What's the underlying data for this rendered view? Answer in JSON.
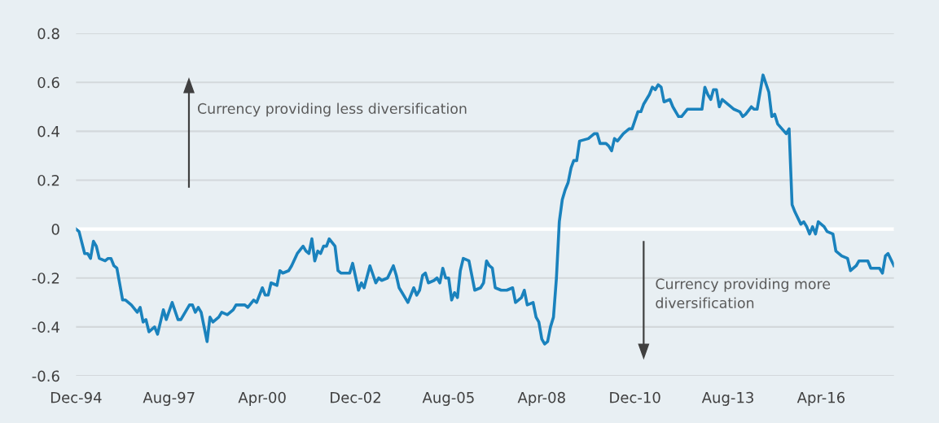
{
  "chart_data": {
    "type": "line",
    "x": [
      "1994-12",
      "1995-01",
      "1995-03",
      "1995-04",
      "1995-05",
      "1995-06",
      "1995-07",
      "1995-08",
      "1995-10",
      "1995-11",
      "1995-12",
      "1996-01",
      "1996-02",
      "1996-04",
      "1996-05",
      "1996-07",
      "1996-09",
      "1996-10",
      "1996-11",
      "1996-12",
      "1997-01",
      "1997-03",
      "1997-04",
      "1997-06",
      "1997-07",
      "1997-09",
      "1997-11",
      "1997-12",
      "1998-03",
      "1998-04",
      "1998-05",
      "1998-06",
      "1998-07",
      "1998-09",
      "1998-10",
      "1998-11",
      "1999-01",
      "1999-02",
      "1999-04",
      "1999-06",
      "1999-07",
      "1999-10",
      "1999-11",
      "2000-01",
      "2000-02",
      "2000-04",
      "2000-05",
      "2000-06",
      "2000-07",
      "2000-09",
      "2000-10",
      "2000-11",
      "2001-01",
      "2001-02",
      "2001-04",
      "2001-06",
      "2001-07",
      "2001-08",
      "2001-09",
      "2001-10",
      "2001-11",
      "2001-12",
      "2002-01",
      "2002-02",
      "2002-03",
      "2002-05",
      "2002-06",
      "2002-07",
      "2002-08",
      "2002-10",
      "2002-11",
      "2003-01",
      "2003-02",
      "2003-03",
      "2003-05",
      "2003-07",
      "2003-08",
      "2003-09",
      "2003-11",
      "2004-01",
      "2004-02",
      "2004-03",
      "2004-04",
      "2004-06",
      "2004-08",
      "2004-09",
      "2004-10",
      "2004-11",
      "2004-12",
      "2005-01",
      "2005-03",
      "2005-04",
      "2005-05",
      "2005-06",
      "2005-07",
      "2005-08",
      "2005-09",
      "2005-10",
      "2005-11",
      "2005-12",
      "2006-01",
      "2006-03",
      "2006-05",
      "2006-07",
      "2006-08",
      "2006-09",
      "2006-10",
      "2006-11",
      "2006-12",
      "2007-02",
      "2007-04",
      "2007-06",
      "2007-07",
      "2007-09",
      "2007-10",
      "2007-11",
      "2008-01",
      "2008-02",
      "2008-03",
      "2008-04",
      "2008-05",
      "2008-06",
      "2008-07",
      "2008-08",
      "2008-09",
      "2008-10",
      "2008-11",
      "2008-12",
      "2009-01",
      "2009-02",
      "2009-03",
      "2009-04",
      "2009-05",
      "2009-08",
      "2009-10",
      "2009-11",
      "2009-12",
      "2010-02",
      "2010-03",
      "2010-04",
      "2010-05",
      "2010-06",
      "2010-08",
      "2010-10",
      "2010-11",
      "2011-01",
      "2011-02",
      "2011-03",
      "2011-05",
      "2011-06",
      "2011-07",
      "2011-08",
      "2011-09",
      "2011-10",
      "2011-12",
      "2012-01",
      "2012-03",
      "2012-04",
      "2012-06",
      "2012-07",
      "2012-09",
      "2012-10",
      "2012-11",
      "2012-12",
      "2013-01",
      "2013-02",
      "2013-03",
      "2013-04",
      "2013-05",
      "2013-06",
      "2013-08",
      "2013-09",
      "2013-10",
      "2013-12",
      "2014-01",
      "2014-02",
      "2014-04",
      "2014-05",
      "2014-06",
      "2014-08",
      "2014-10",
      "2014-11",
      "2014-12",
      "2015-01",
      "2015-04",
      "2015-05",
      "2015-06",
      "2015-07",
      "2015-09",
      "2015-10",
      "2015-11",
      "2015-12",
      "2016-01",
      "2016-02",
      "2016-03",
      "2016-05",
      "2016-06",
      "2016-08",
      "2016-09",
      "2016-11",
      "2017-01",
      "2017-02",
      "2017-04",
      "2017-05",
      "2017-08",
      "2017-09",
      "2017-11",
      "2017-12",
      "2018-01",
      "2018-02",
      "2018-03",
      "2018-05"
    ],
    "series": [
      {
        "color": "#1a82bd",
        "values": [
          0.0,
          -0.01,
          -0.1,
          -0.1,
          -0.12,
          -0.05,
          -0.07,
          -0.12,
          -0.13,
          -0.12,
          -0.12,
          -0.15,
          -0.16,
          -0.29,
          -0.29,
          -0.31,
          -0.34,
          -0.32,
          -0.38,
          -0.37,
          -0.42,
          -0.4,
          -0.43,
          -0.33,
          -0.37,
          -0.3,
          -0.37,
          -0.37,
          -0.31,
          -0.31,
          -0.34,
          -0.32,
          -0.34,
          -0.46,
          -0.36,
          -0.38,
          -0.36,
          -0.34,
          -0.35,
          -0.33,
          -0.31,
          -0.31,
          -0.32,
          -0.29,
          -0.3,
          -0.24,
          -0.27,
          -0.27,
          -0.22,
          -0.23,
          -0.17,
          -0.18,
          -0.17,
          -0.15,
          -0.1,
          -0.07,
          -0.09,
          -0.1,
          -0.04,
          -0.13,
          -0.09,
          -0.1,
          -0.07,
          -0.07,
          -0.04,
          -0.07,
          -0.17,
          -0.18,
          -0.18,
          -0.18,
          -0.14,
          -0.25,
          -0.22,
          -0.24,
          -0.15,
          -0.22,
          -0.2,
          -0.21,
          -0.2,
          -0.15,
          -0.19,
          -0.24,
          -0.26,
          -0.3,
          -0.24,
          -0.27,
          -0.25,
          -0.19,
          -0.18,
          -0.22,
          -0.21,
          -0.2,
          -0.22,
          -0.16,
          -0.2,
          -0.2,
          -0.29,
          -0.26,
          -0.28,
          -0.17,
          -0.12,
          -0.13,
          -0.25,
          -0.24,
          -0.22,
          -0.13,
          -0.15,
          -0.16,
          -0.24,
          -0.25,
          -0.25,
          -0.24,
          -0.3,
          -0.28,
          -0.25,
          -0.31,
          -0.3,
          -0.36,
          -0.38,
          -0.45,
          -0.47,
          -0.46,
          -0.4,
          -0.36,
          -0.2,
          0.03,
          0.12,
          0.16,
          0.19,
          0.25,
          0.28,
          0.28,
          0.36,
          0.37,
          0.39,
          0.39,
          0.35,
          0.35,
          0.34,
          0.32,
          0.37,
          0.36,
          0.39,
          0.41,
          0.41,
          0.48,
          0.48,
          0.51,
          0.55,
          0.58,
          0.57,
          0.59,
          0.58,
          0.52,
          0.53,
          0.5,
          0.46,
          0.46,
          0.49,
          0.49,
          0.49,
          0.49,
          0.49,
          0.58,
          0.55,
          0.53,
          0.57,
          0.57,
          0.5,
          0.53,
          0.51,
          0.5,
          0.49,
          0.48,
          0.46,
          0.47,
          0.5,
          0.49,
          0.49,
          0.63,
          0.56,
          0.46,
          0.47,
          0.43,
          0.39,
          0.41,
          0.1,
          0.07,
          0.02,
          0.03,
          0.01,
          -0.02,
          0.01,
          -0.02,
          0.03,
          0.01,
          -0.01,
          -0.02,
          -0.09,
          -0.11,
          -0.12,
          -0.17,
          -0.15,
          -0.13,
          -0.13,
          -0.16,
          -0.16,
          -0.16,
          -0.18,
          -0.11,
          -0.1,
          -0.15
        ]
      }
    ],
    "xlim": [
      "1994-12",
      "2018-05"
    ],
    "xticks": [
      {
        "value": "1994-12",
        "label": "Dec-94"
      },
      {
        "value": "1997-08",
        "label": "Aug-97"
      },
      {
        "value": "2000-04",
        "label": "Apr-00"
      },
      {
        "value": "2002-12",
        "label": "Dec-02"
      },
      {
        "value": "2005-08",
        "label": "Aug-05"
      },
      {
        "value": "2008-04",
        "label": "Apr-08"
      },
      {
        "value": "2010-12",
        "label": "Dec-10"
      },
      {
        "value": "2013-08",
        "label": "Aug-13"
      },
      {
        "value": "2016-04",
        "label": "Apr-16"
      }
    ],
    "ylim": [
      -0.6,
      0.8
    ],
    "yticks": [
      {
        "value": 0.8,
        "label": "0.8"
      },
      {
        "value": 0.6,
        "label": "0.6"
      },
      {
        "value": 0.4,
        "label": "0.4"
      },
      {
        "value": 0.2,
        "label": "0.2"
      },
      0,
      {
        "value": -0.2,
        "label": "-0.2"
      },
      {
        "value": -0.4,
        "label": "-0.4"
      },
      {
        "value": -0.6,
        "label": "-0.6"
      }
    ],
    "grid": "y",
    "ref_lines": [
      {
        "axis": "y",
        "value": 0,
        "color": "#ffffff"
      }
    ],
    "annotations": [
      "Currency providing less diversification",
      "Currency providing more\ndiversification"
    ],
    "marker": "none",
    "line_style": "solid"
  }
}
